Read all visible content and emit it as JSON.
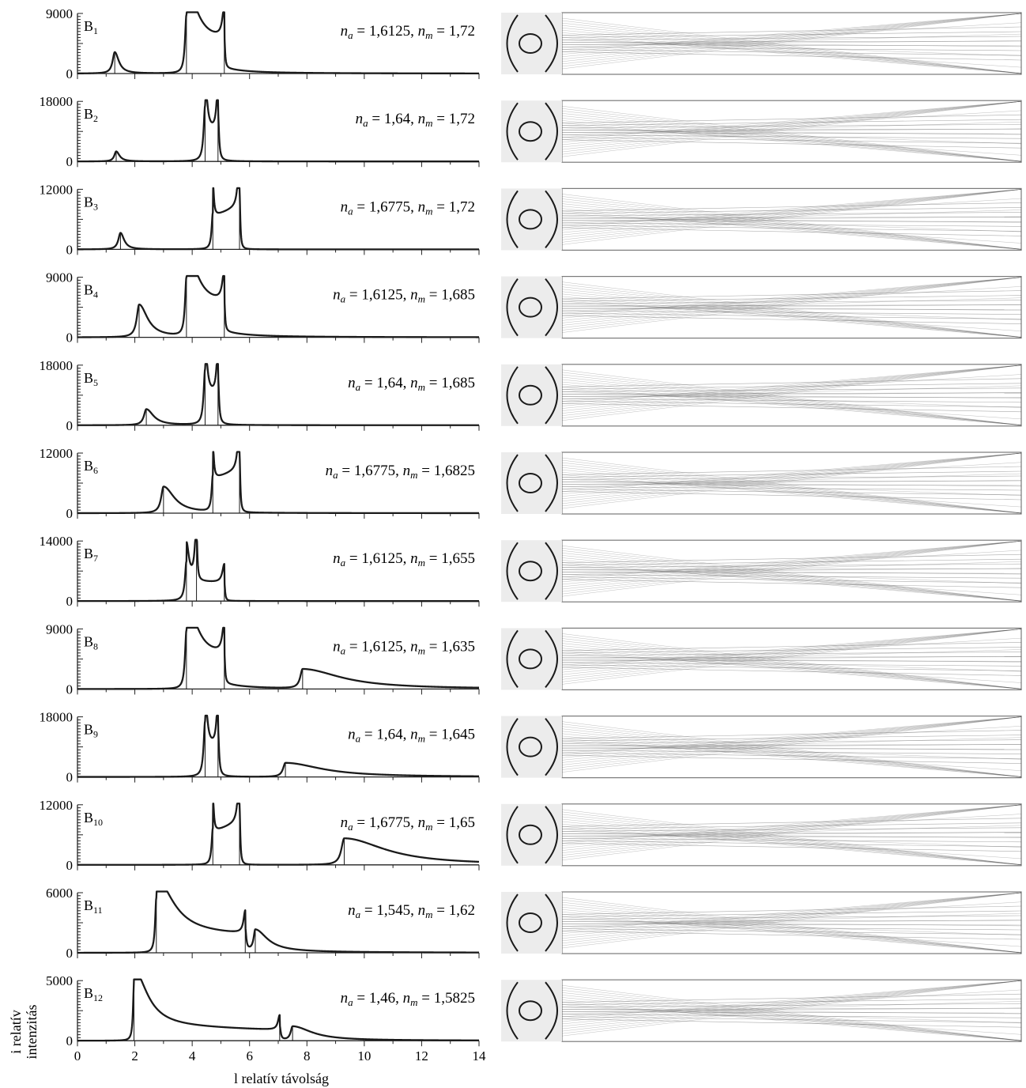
{
  "figure": {
    "x_axis_label": "l relatív távolság",
    "y_axis_label_line1": "i relatív",
    "y_axis_label_line2": "intenzitás",
    "x_ticks": [
      "0",
      "2",
      "4",
      "6",
      "8",
      "10",
      "12",
      "14"
    ],
    "colors": {
      "curve": "#1a1a1a",
      "ray": "#444444",
      "frame": "#7a7a7a"
    }
  },
  "chart_data": [
    {
      "type": "line",
      "label": "B",
      "sub": "1",
      "ymax_label": "9000",
      "ylim": [
        0,
        9000
      ],
      "xlim": [
        0,
        14
      ],
      "na": "1,6125",
      "nm": "1,72",
      "peaks": [
        [
          1.3,
          3200,
          0.09,
          0.17
        ],
        [
          3.8,
          8800,
          0.06,
          0.45
        ],
        [
          5.12,
          4600,
          0.08,
          0.03
        ]
      ],
      "steps": [
        [
          3.8,
          5.12,
          3900,
          4700
        ]
      ],
      "vlines": [
        1.3,
        3.8,
        5.12
      ]
    },
    {
      "type": "line",
      "label": "B",
      "sub": "2",
      "ymax_label": "18000",
      "ylim": [
        0,
        18000
      ],
      "xlim": [
        0,
        14
      ],
      "na": "1,64",
      "nm": "1,72",
      "peaks": [
        [
          1.35,
          3000,
          0.08,
          0.14
        ],
        [
          4.45,
          16500,
          0.06,
          0.08
        ],
        [
          4.9,
          14200,
          0.06,
          0.04
        ]
      ],
      "steps": [
        [
          4.45,
          4.9,
          9000,
          9000
        ]
      ],
      "vlines": [
        1.35,
        4.45,
        4.9
      ]
    },
    {
      "type": "line",
      "label": "B",
      "sub": "3",
      "ymax_label": "12000",
      "ylim": [
        0,
        12000
      ],
      "xlim": [
        0,
        14
      ],
      "na": "1,6775",
      "nm": "1,72",
      "peaks": [
        [
          1.5,
          3300,
          0.09,
          0.15
        ],
        [
          4.72,
          7300,
          0.05,
          0.04
        ],
        [
          5.65,
          11600,
          0.06,
          0.03
        ]
      ],
      "steps": [
        [
          4.72,
          5.65,
          6500,
          8600
        ]
      ],
      "vlines": [
        1.5,
        4.72,
        5.65
      ]
    },
    {
      "type": "line",
      "label": "B",
      "sub": "4",
      "ymax_label": "9000",
      "ylim": [
        0,
        9000
      ],
      "xlim": [
        0,
        14
      ],
      "na": "1,6125",
      "nm": "1,685",
      "peaks": [
        [
          2.15,
          4900,
          0.1,
          0.35
        ],
        [
          3.8,
          8800,
          0.06,
          0.45
        ],
        [
          5.12,
          4600,
          0.08,
          0.03
        ]
      ],
      "steps": [
        [
          3.8,
          5.12,
          3900,
          4700
        ]
      ],
      "vlines": [
        2.15,
        3.8,
        5.12
      ]
    },
    {
      "type": "line",
      "label": "B",
      "sub": "5",
      "ymax_label": "18000",
      "ylim": [
        0,
        18000
      ],
      "xlim": [
        0,
        14
      ],
      "na": "1,64",
      "nm": "1,685",
      "peaks": [
        [
          2.4,
          4800,
          0.1,
          0.3
        ],
        [
          4.45,
          16500,
          0.06,
          0.08
        ],
        [
          4.9,
          14200,
          0.06,
          0.04
        ]
      ],
      "steps": [
        [
          4.45,
          4.9,
          9000,
          9000
        ]
      ],
      "vlines": [
        2.4,
        4.45,
        4.9
      ]
    },
    {
      "type": "line",
      "label": "B",
      "sub": "6",
      "ymax_label": "12000",
      "ylim": [
        0,
        12000
      ],
      "xlim": [
        0,
        14
      ],
      "na": "1,6775",
      "nm": "1,6825",
      "peaks": [
        [
          3.0,
          5300,
          0.1,
          0.45
        ],
        [
          4.72,
          7300,
          0.05,
          0.04
        ],
        [
          5.65,
          11600,
          0.06,
          0.03
        ]
      ],
      "steps": [
        [
          4.72,
          5.65,
          6500,
          8600
        ]
      ],
      "vlines": [
        3.0,
        4.72,
        5.65
      ]
    },
    {
      "type": "line",
      "label": "B",
      "sub": "7",
      "ymax_label": "14000",
      "ylim": [
        0,
        14000
      ],
      "xlim": [
        0,
        14
      ],
      "na": "1,6125",
      "nm": "1,655",
      "peaks": [
        [
          3.8,
          8800,
          0.06,
          0.1
        ],
        [
          4.15,
          12700,
          0.07,
          0.03
        ],
        [
          5.12,
          4300,
          0.08,
          0.03
        ]
      ],
      "steps": [
        [
          3.8,
          5.12,
          4500,
          4300
        ]
      ],
      "vlines": [
        3.8,
        4.15,
        5.12
      ]
    },
    {
      "type": "line",
      "label": "B",
      "sub": "8",
      "ymax_label": "9000",
      "ylim": [
        0,
        9000
      ],
      "xlim": [
        0,
        14
      ],
      "na": "1,6125",
      "nm": "1,635",
      "peaks": [
        [
          3.8,
          8800,
          0.06,
          0.45
        ],
        [
          5.12,
          4600,
          0.08,
          0.03
        ],
        [
          7.85,
          2900,
          0.1,
          1.6
        ]
      ],
      "steps": [
        [
          3.8,
          5.12,
          3900,
          4700
        ]
      ],
      "vlines": [
        3.8,
        5.12,
        7.85
      ]
    },
    {
      "type": "line",
      "label": "B",
      "sub": "9",
      "ymax_label": "18000",
      "ylim": [
        0,
        18000
      ],
      "xlim": [
        0,
        14
      ],
      "na": "1,64",
      "nm": "1,645",
      "peaks": [
        [
          4.45,
          16500,
          0.06,
          0.08
        ],
        [
          4.9,
          14200,
          0.06,
          0.04
        ],
        [
          7.25,
          4200,
          0.1,
          1.5
        ]
      ],
      "steps": [
        [
          4.45,
          4.9,
          9000,
          9000
        ]
      ],
      "vlines": [
        4.45,
        4.9,
        7.25
      ]
    },
    {
      "type": "line",
      "label": "B",
      "sub": "10",
      "ymax_label": "12000",
      "ylim": [
        0,
        12000
      ],
      "xlim": [
        0,
        14
      ],
      "na": "1,6775",
      "nm": "1,65",
      "peaks": [
        [
          4.72,
          7300,
          0.05,
          0.04
        ],
        [
          5.65,
          11600,
          0.06,
          0.03
        ],
        [
          9.3,
          5300,
          0.12,
          1.7
        ]
      ],
      "steps": [
        [
          4.72,
          5.65,
          6500,
          8600
        ]
      ],
      "vlines": [
        4.72,
        5.65,
        9.3
      ]
    },
    {
      "type": "line",
      "label": "B",
      "sub": "11",
      "ymax_label": "6000",
      "ylim": [
        0,
        6000
      ],
      "xlim": [
        0,
        14
      ],
      "na": "1,545",
      "nm": "1,62",
      "peaks": [
        [
          2.75,
          5500,
          0.05,
          0.7
        ],
        [
          5.85,
          2200,
          0.07,
          0.04
        ],
        [
          6.2,
          2100,
          0.07,
          0.5
        ]
      ],
      "steps": [
        [
          2.75,
          5.85,
          1900,
          1700
        ]
      ],
      "vlines": [
        2.75,
        5.85,
        6.2
      ]
    },
    {
      "type": "line",
      "label": "B",
      "sub": "12",
      "ymax_label": "5000",
      "ylim": [
        0,
        5000
      ],
      "xlim": [
        0,
        14
      ],
      "na": "1,46",
      "nm": "1,5825",
      "peaks": [
        [
          1.97,
          4700,
          0.04,
          0.55
        ],
        [
          7.05,
          1200,
          0.07,
          0.04
        ],
        [
          7.5,
          1150,
          0.08,
          0.8
        ]
      ],
      "steps": [
        [
          1.97,
          7.05,
          1200,
          850
        ]
      ],
      "vlines": [
        1.97,
        7.05,
        7.5
      ]
    }
  ]
}
